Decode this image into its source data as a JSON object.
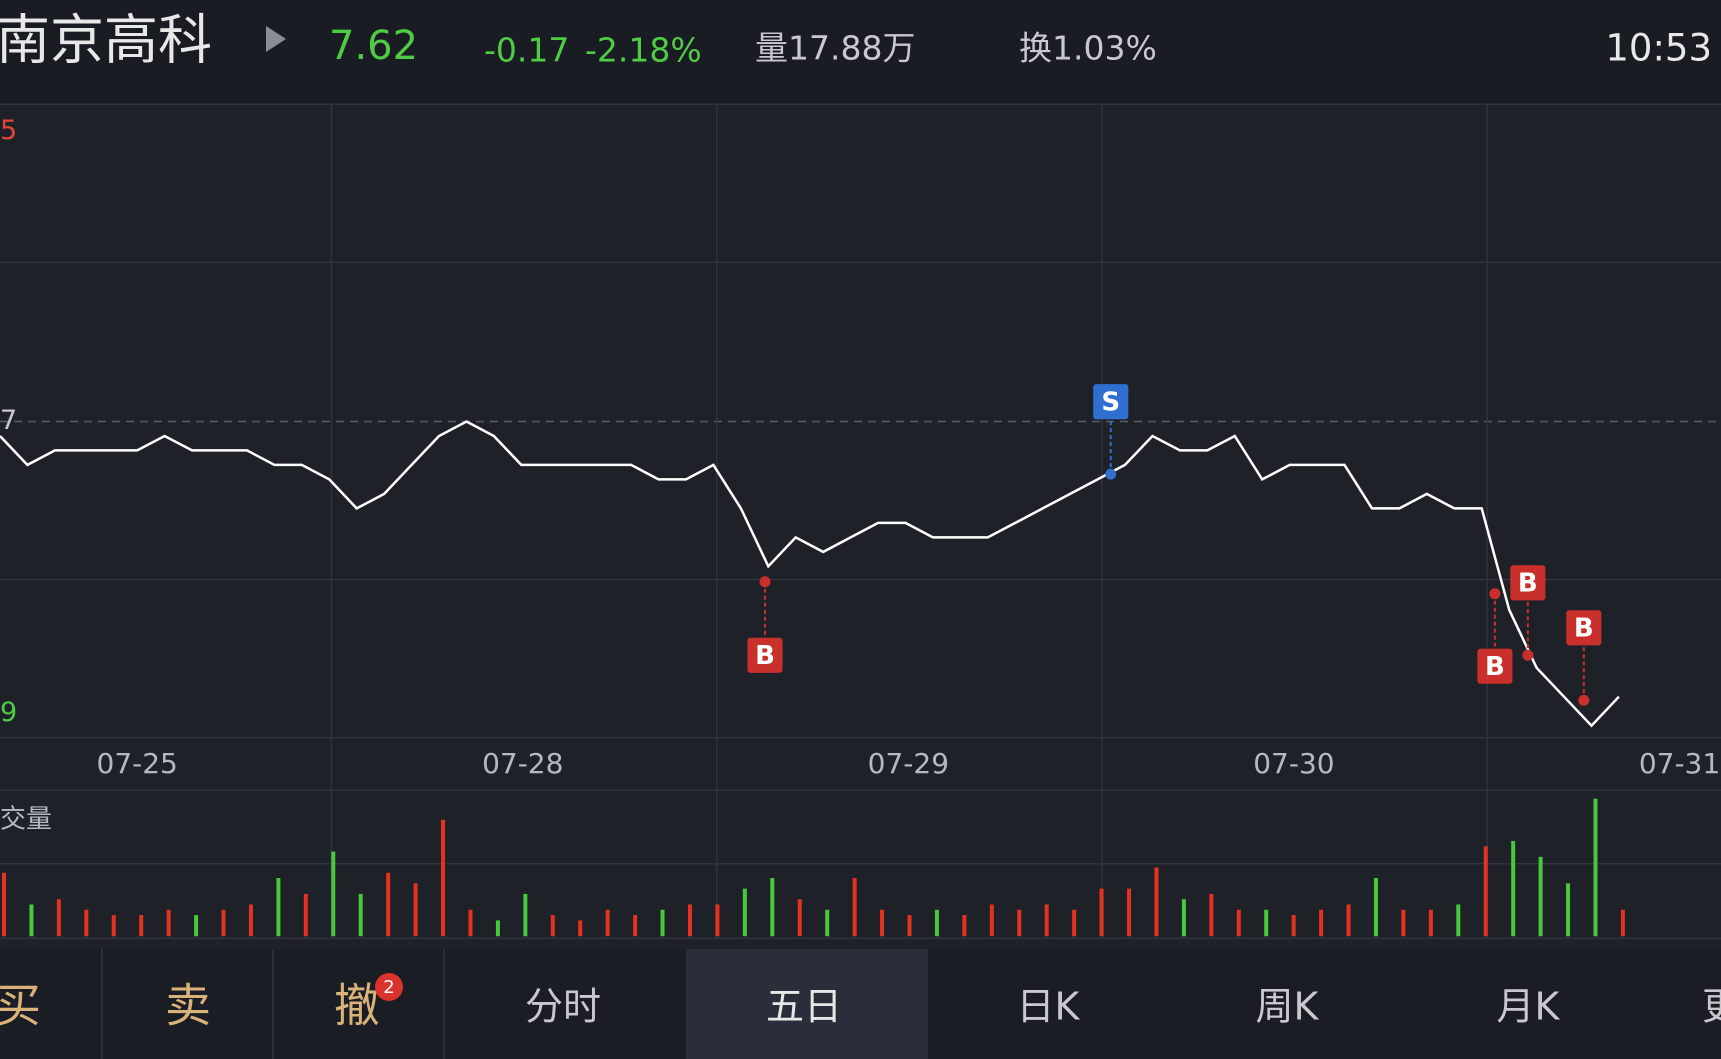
{
  "header": {
    "name": "南京高科",
    "price": "7.62",
    "change": "-0.17",
    "change_pct": "-2.18%",
    "volume": "量17.88万",
    "turnover": "换1.03%",
    "time": "10:53"
  },
  "chart_data": [
    {
      "type": "line",
      "color": "#ffffff",
      "ylim": [
        7.59,
        7.99
      ],
      "y_labels": [
        "5",
        "7",
        "9"
      ],
      "x_labels": [
        "07-25",
        "07-28",
        "07-29",
        "07-30",
        "07-31"
      ],
      "values": [
        7.78,
        7.76,
        7.77,
        7.77,
        7.77,
        7.77,
        7.78,
        7.77,
        7.77,
        7.77,
        7.76,
        7.76,
        7.75,
        7.73,
        7.74,
        7.76,
        7.78,
        7.79,
        7.78,
        7.76,
        7.76,
        7.76,
        7.76,
        7.76,
        7.75,
        7.75,
        7.76,
        7.73,
        7.69,
        7.71,
        7.7,
        7.71,
        7.72,
        7.72,
        7.71,
        7.71,
        7.71,
        7.72,
        7.73,
        7.74,
        7.75,
        7.76,
        7.78,
        7.77,
        7.77,
        7.78,
        7.75,
        7.76,
        7.76,
        7.76,
        7.73,
        7.73,
        7.74,
        7.73,
        7.73,
        7.66,
        7.62,
        7.6,
        7.58,
        7.6
      ],
      "annotations": [
        "B",
        "S",
        "B",
        "B",
        "B"
      ]
    },
    {
      "type": "bar",
      "title": "交量",
      "ylim": [
        0,
        140
      ],
      "up_color": "#e3321f",
      "down_color": "#46c93a",
      "values": [
        60,
        30,
        35,
        25,
        20,
        20,
        25,
        20,
        25,
        30,
        55,
        40,
        80,
        40,
        60,
        50,
        110,
        25,
        15,
        40,
        20,
        15,
        25,
        20,
        25,
        30,
        30,
        45,
        55,
        35,
        25,
        55,
        25,
        20,
        25,
        20,
        30,
        25,
        30,
        25,
        45,
        45,
        65,
        35,
        40,
        25,
        25,
        20,
        25,
        30,
        55,
        25,
        25,
        30,
        85,
        90,
        75,
        50,
        130,
        25
      ]
    }
  ],
  "tabs": [
    "买",
    "卖",
    "撤",
    "分时",
    "五日",
    "日K",
    "周K",
    "月K",
    "更"
  ],
  "badge": "2"
}
